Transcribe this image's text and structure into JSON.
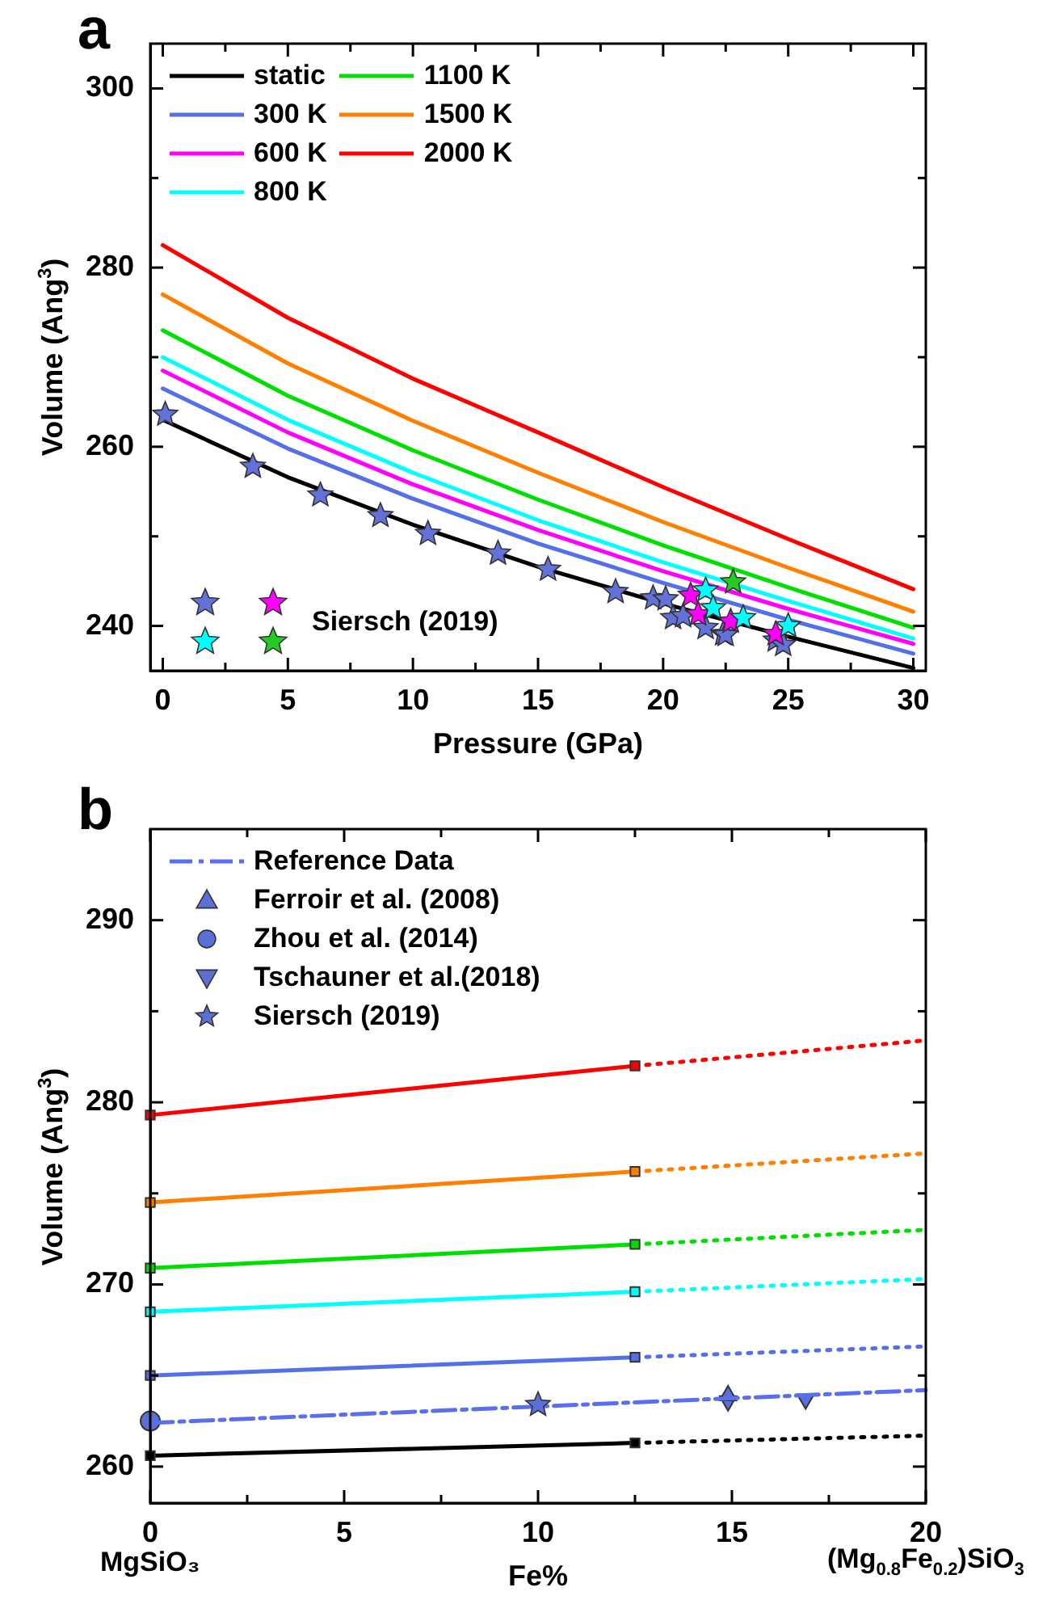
{
  "chart_data": [
    {
      "type": "line",
      "title": "a",
      "xlabel": "Pressure (GPa)",
      "ylabel": "Volume (Ang$^{3}$)",
      "xlim": [
        -0.5,
        30.5
      ],
      "ylim": [
        235,
        305
      ],
      "xticks": [
        0,
        {
          "value": 2.5,
          "label": null
        },
        5,
        {
          "value": 7.5,
          "label": null
        },
        10,
        {
          "value": 12.5,
          "label": null
        },
        15,
        {
          "value": 17.5,
          "label": null
        },
        20,
        {
          "value": 22.5,
          "label": null
        },
        25,
        {
          "value": 27.5,
          "label": null
        },
        30
      ],
      "yticks": [
        240,
        {
          "value": 250,
          "label": null
        },
        260,
        {
          "value": 270,
          "label": null
        },
        280,
        {
          "value": 290,
          "label": null
        },
        300
      ],
      "legend": "top left",
      "marker": "none",
      "x": [
        0,
        5,
        10,
        15,
        20,
        25,
        30
      ],
      "annotations": [
        "Siersch (2019)"
      ],
      "series": [
        {
          "name": "static",
          "color": "#000000",
          "values": [
            263,
            256.6,
            251.3,
            246.6,
            242.5,
            238.8,
            235.3
          ]
        },
        {
          "name": "300 K",
          "color": "#5470e8",
          "values": [
            266.5,
            259.8,
            254.2,
            249.2,
            244.8,
            240.7,
            236.9
          ]
        },
        {
          "name": "600 K",
          "color": "#ff00ff",
          "values": [
            268.5,
            261.6,
            255.8,
            250.7,
            246.1,
            241.9,
            238
          ]
        },
        {
          "name": "800 K",
          "color": "#00ffff",
          "values": [
            270,
            263,
            257.1,
            251.8,
            247.1,
            242.8,
            238.6
          ]
        },
        {
          "name": "1100 K",
          "color": "#00e000",
          "values": [
            273,
            265.7,
            259.6,
            254.1,
            249,
            244.3,
            239.8
          ]
        },
        {
          "name": "1500 K",
          "color": "#ff7f00",
          "values": [
            277,
            269.3,
            262.9,
            257.1,
            251.6,
            246.5,
            241.6
          ]
        },
        {
          "name": "2000 K",
          "color": "#ff0000",
          "values": [
            282.5,
            274.4,
            267.6,
            261.6,
            255.5,
            249.7,
            244.1
          ]
        },
        {
          "type": "scatter",
          "marker": "star",
          "color": "#6272d8",
          "x": [
            0.1,
            3.6,
            6.3,
            8.7,
            10.6,
            13.4,
            15.4,
            18.1,
            19.6,
            20.1,
            20.4,
            20.8,
            21.7,
            22.4,
            22.5,
            24.5,
            24.8
          ],
          "values": [
            263.6,
            257.8,
            254.6,
            252.3,
            250.3,
            248.1,
            246.3,
            243.8,
            243.1,
            243,
            240.9,
            241.1,
            239.8,
            239.1,
            239,
            238.4,
            237.9
          ]
        },
        {
          "type": "scatter",
          "marker": "star",
          "color": "#ff00ff",
          "x": [
            21.1,
            21.4,
            22.7,
            24.5
          ],
          "values": [
            243.4,
            241.3,
            240.5,
            239.1
          ]
        },
        {
          "type": "scatter",
          "marker": "star",
          "color": "#00ffff",
          "x": [
            21.7,
            22,
            23.2,
            25
          ],
          "values": [
            244,
            242,
            240.9,
            240
          ]
        },
        {
          "type": "scatter",
          "marker": "star",
          "color": "#22cc22",
          "x": [
            22.8
          ],
          "values": [
            244.9
          ]
        }
      ]
    },
    {
      "type": "line",
      "title": "b",
      "xlabel": "Fe%",
      "ylabel": "Volume (Ang$^{3}$)",
      "xlim": [
        0,
        20
      ],
      "ylim": [
        258,
        295
      ],
      "xticks": [
        0,
        {
          "value": 2.5,
          "label": null
        },
        5,
        {
          "value": 7.5,
          "label": null
        },
        10,
        {
          "value": 12.5,
          "label": null
        },
        15,
        {
          "value": 17.5,
          "label": null
        },
        20
      ],
      "yticks": [
        260,
        {
          "value": 265,
          "label": null
        },
        270,
        {
          "value": 275,
          "label": null
        },
        280,
        {
          "value": 285,
          "label": null
        },
        290
      ],
      "legend": "top left",
      "annotations": [
        "MgSiO₃",
        "(Mg$_{0.8}$Fe$_{0.2}$)SiO$_{3}$"
      ],
      "series": [
        {
          "name": "Reference Data",
          "type": "line",
          "marker": "none",
          "line_style": "dashdot",
          "color": "#5a6ef0",
          "x": [
            0,
            20
          ],
          "values": [
            262.4,
            264.2
          ]
        },
        {
          "name": "Ferroir et al. (2008)",
          "type": "scatter",
          "marker": "triangle",
          "color": "#5b6fd6",
          "x": [
            14.9
          ],
          "values": [
            263.9
          ]
        },
        {
          "name": "Zhou et al. (2014)",
          "type": "scatter",
          "marker": "circle",
          "color": "#5b6fd6",
          "x": [
            0
          ],
          "values": [
            262.5
          ]
        },
        {
          "name": "Tschauner et al.(2018)",
          "type": "scatter",
          "marker": "triangle-down",
          "color": "#5b6fd6",
          "x": [
            14.9,
            16.9
          ],
          "values": [
            263.6,
            263.7
          ]
        },
        {
          "name": "Siersch (2019)",
          "type": "scatter",
          "marker": "star",
          "color": "#5b6fd6",
          "x": [
            10
          ],
          "values": [
            263.4
          ]
        },
        {
          "type": "line",
          "marker": "square",
          "line_style": "solid",
          "color": "#000000",
          "x": [
            0,
            12.5
          ],
          "values": [
            260.6,
            261.3
          ]
        },
        {
          "type": "line",
          "marker": "none",
          "line_style": "dotted",
          "color": "#000000",
          "x": [
            12.5,
            20
          ],
          "values": [
            261.3,
            261.7
          ]
        },
        {
          "type": "line",
          "marker": "square",
          "line_style": "solid",
          "color": "#5470e8",
          "x": [
            0,
            12.5
          ],
          "values": [
            265,
            266
          ]
        },
        {
          "type": "line",
          "marker": "none",
          "line_style": "dotted",
          "color": "#5470e8",
          "x": [
            12.5,
            20
          ],
          "values": [
            266,
            266.6
          ]
        },
        {
          "type": "line",
          "marker": "square",
          "line_style": "solid",
          "color": "#00ffff",
          "x": [
            0,
            12.5
          ],
          "values": [
            268.5,
            269.6
          ]
        },
        {
          "type": "line",
          "marker": "none",
          "line_style": "dotted",
          "color": "#00ffff",
          "x": [
            12.5,
            20
          ],
          "values": [
            269.6,
            270.3
          ]
        },
        {
          "type": "line",
          "marker": "square",
          "line_style": "solid",
          "color": "#00e000",
          "x": [
            0,
            12.5
          ],
          "values": [
            270.9,
            272.2
          ]
        },
        {
          "type": "line",
          "marker": "none",
          "line_style": "dotted",
          "color": "#00e000",
          "x": [
            12.5,
            20
          ],
          "values": [
            272.2,
            273
          ]
        },
        {
          "type": "line",
          "marker": "square",
          "line_style": "solid",
          "color": "#ff7f00",
          "x": [
            0,
            12.5
          ],
          "values": [
            274.5,
            276.2
          ]
        },
        {
          "type": "line",
          "marker": "none",
          "line_style": "dotted",
          "color": "#ff7f00",
          "x": [
            12.5,
            20
          ],
          "values": [
            276.2,
            277.2
          ]
        },
        {
          "type": "line",
          "marker": "square",
          "line_style": "solid",
          "color": "#ff0000",
          "x": [
            0,
            12.5
          ],
          "values": [
            279.3,
            282
          ]
        },
        {
          "type": "line",
          "marker": "none",
          "line_style": "dotted",
          "color": "#ff0000",
          "x": [
            12.5,
            20
          ],
          "values": [
            282,
            283.4
          ]
        }
      ]
    }
  ]
}
